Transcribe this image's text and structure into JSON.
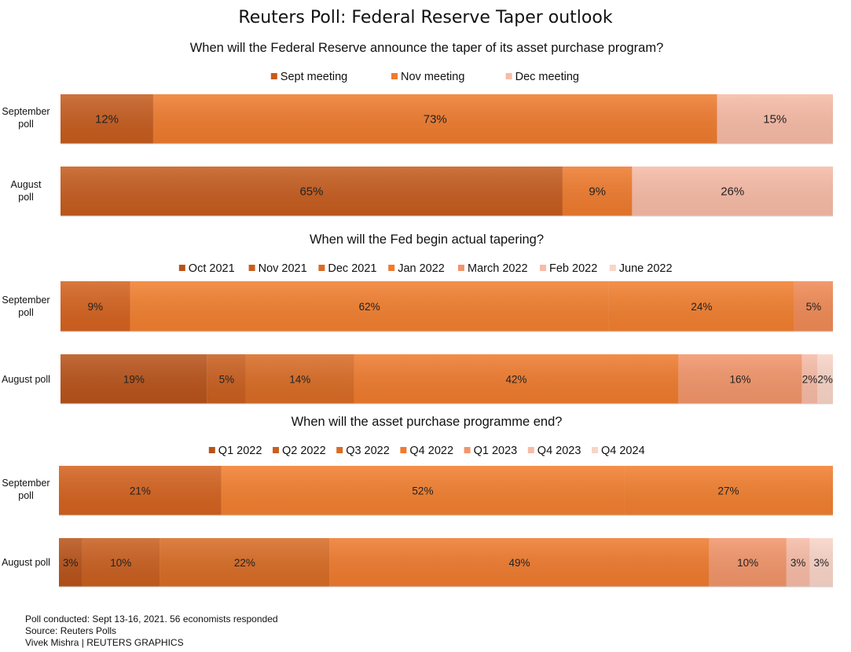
{
  "title": "Reuters Poll: Federal Reserve Taper outlook",
  "chart_data": [
    {
      "type": "bar",
      "orientation": "horizontal-stacked",
      "title": "When will the Federal Reserve announce the taper of its asset purchase program?",
      "legend_position": "top-center",
      "series": [
        {
          "name": "Sept meeting",
          "color": "#c55c1e"
        },
        {
          "name": "Nov meeting",
          "color": "#ef7b2e"
        },
        {
          "name": "Dec meeting",
          "color": "#f7bba6"
        }
      ],
      "rows": [
        {
          "label": [
            "September",
            "poll"
          ],
          "values": [
            12,
            73,
            15
          ],
          "value_labels": [
            "12%",
            "73%",
            "15%"
          ]
        },
        {
          "label": [
            "August",
            "poll"
          ],
          "values": [
            65,
            9,
            26
          ],
          "value_labels": [
            "65%",
            "9%",
            "26%"
          ]
        }
      ]
    },
    {
      "type": "bar",
      "orientation": "horizontal-stacked",
      "title": "When will the Fed begin actual tapering?",
      "legend_position": "top-center",
      "series": [
        {
          "name": "Oct 2021",
          "color": "#b8531a"
        },
        {
          "name": "Nov 2021",
          "color": "#c95f1f"
        },
        {
          "name": "Dec 2021",
          "color": "#d96c25"
        },
        {
          "name": "Jan 2022",
          "color": "#ef7b2e"
        },
        {
          "name": "March 2022",
          "color": "#f2956a"
        },
        {
          "name": "Feb 2022",
          "color": "#f7bba6"
        },
        {
          "name": "June 2022",
          "color": "#f9d4c7"
        }
      ],
      "rows": [
        {
          "label": [
            "September",
            "poll"
          ],
          "values": [
            0,
            9,
            0,
            62,
            24,
            5,
            0
          ],
          "colors": [
            "",
            "#d4621f",
            "",
            "#f27f2f",
            "#f27f2f",
            "#f08a55",
            ""
          ],
          "value_labels": [
            "",
            "9%",
            "",
            "62%",
            "24%",
            "5%",
            ""
          ]
        },
        {
          "label": [
            "August poll"
          ],
          "values": [
            19,
            5,
            14,
            42,
            16,
            2,
            2
          ],
          "value_labels": [
            "19%",
            "5%",
            "14%",
            "42%",
            "16%",
            "2%",
            "2%"
          ]
        }
      ]
    },
    {
      "type": "bar",
      "orientation": "horizontal-stacked",
      "title": "When will the asset purchase programme end?",
      "legend_position": "top-center",
      "series": [
        {
          "name": "Q1 2022",
          "color": "#b8531a"
        },
        {
          "name": "Q2 2022",
          "color": "#c95f1f"
        },
        {
          "name": "Q3 2022",
          "color": "#d96c25"
        },
        {
          "name": "Q4 2022",
          "color": "#ef7b2e"
        },
        {
          "name": "Q1 2023",
          "color": "#f2956a"
        },
        {
          "name": "Q4 2023",
          "color": "#f7bba6"
        },
        {
          "name": "Q4 2024",
          "color": "#f9d4c7"
        }
      ],
      "rows": [
        {
          "label": [
            "September",
            "poll"
          ],
          "values": [
            0,
            21,
            0,
            52,
            27,
            0,
            0
          ],
          "colors": [
            "",
            "#d4621f",
            "",
            "#f27f2f",
            "#f27f2f",
            "",
            ""
          ],
          "value_labels": [
            "",
            "21%",
            "",
            "52%",
            "27%",
            "",
            ""
          ]
        },
        {
          "label": [
            "August poll"
          ],
          "values": [
            3,
            10,
            22,
            49,
            10,
            3,
            3
          ],
          "value_labels": [
            "3%",
            "10%",
            "22%",
            "49%",
            "10%",
            "3%",
            "3%"
          ]
        }
      ]
    }
  ],
  "footer": {
    "line1": "Poll conducted: Sept 13-16, 2021. 56 economists responded",
    "line2": "Source: Reuters Polls",
    "line3": "Vivek Mishra | REUTERS GRAPHICS"
  }
}
